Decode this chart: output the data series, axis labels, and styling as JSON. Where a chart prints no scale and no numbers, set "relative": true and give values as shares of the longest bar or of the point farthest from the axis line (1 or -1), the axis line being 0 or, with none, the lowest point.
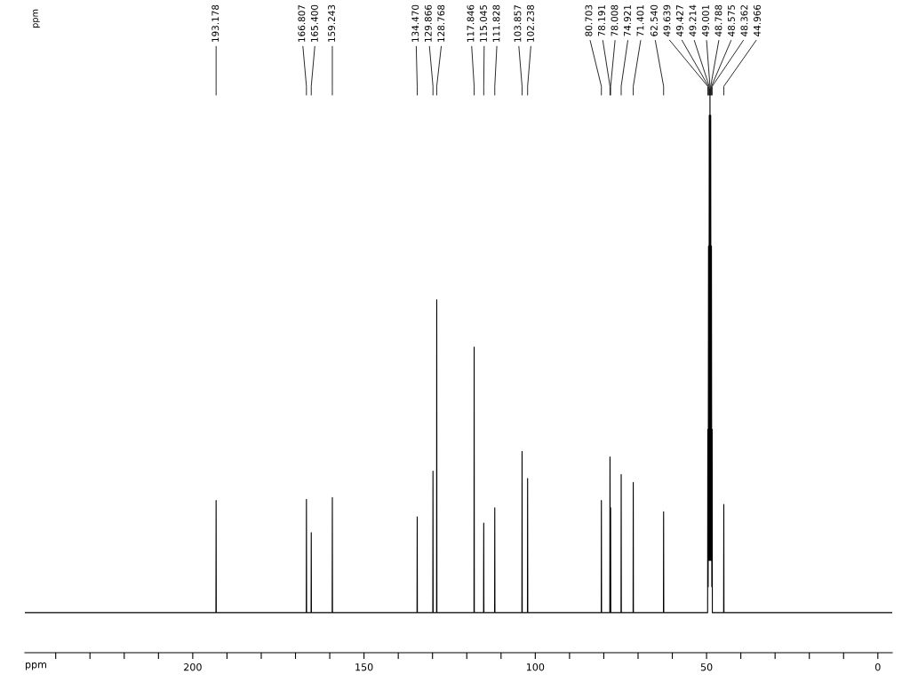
{
  "chart_data": {
    "type": "line",
    "relative": true,
    "xlabel": "ppm",
    "xlim": [
      249,
      -4.2
    ],
    "xticks": [
      {
        "value": 240,
        "label": null
      },
      {
        "value": 230,
        "label": null
      },
      {
        "value": 220,
        "label": null
      },
      {
        "value": 210,
        "label": null
      },
      200,
      {
        "value": 190,
        "label": null
      },
      {
        "value": 180,
        "label": null
      },
      {
        "value": 170,
        "label": null
      },
      {
        "value": 160,
        "label": null
      },
      150,
      {
        "value": 140,
        "label": null
      },
      {
        "value": 130,
        "label": null
      },
      {
        "value": 120,
        "label": null
      },
      {
        "value": 110,
        "label": null
      },
      100,
      {
        "value": 90,
        "label": null
      },
      {
        "value": 80,
        "label": null
      },
      {
        "value": 70,
        "label": null
      },
      {
        "value": 60,
        "label": null
      },
      50,
      {
        "value": 40,
        "label": null
      },
      {
        "value": 30,
        "label": null
      },
      {
        "value": 20,
        "label": null
      },
      {
        "value": 10,
        "label": null
      },
      0
    ],
    "tick_labels": "x",
    "grid": false,
    "legend": false,
    "marker": "none",
    "line_style": "solid",
    "series": [
      {
        "color": "#000000",
        "x": [
          249,
          193.228,
          193.178,
          193.128,
          166.857,
          166.807,
          166.757,
          165.45,
          165.4,
          165.35,
          159.293,
          159.243,
          159.193,
          134.52,
          134.47,
          134.42,
          129.916,
          129.866,
          129.816,
          128.818,
          128.768,
          128.718,
          117.896,
          117.846,
          117.796,
          115.095,
          115.045,
          114.995,
          111.878,
          111.828,
          111.778,
          103.907,
          103.857,
          103.807,
          102.288,
          102.238,
          102.188,
          80.753,
          80.703,
          80.653,
          78.241,
          78.191,
          78.1,
          78.008,
          77.958,
          74.971,
          74.921,
          74.871,
          71.451,
          71.401,
          71.351,
          62.59,
          62.54,
          62.49,
          49.689,
          49.639,
          49.533,
          49.427,
          49.32,
          49.214,
          49.107,
          49.001,
          48.894,
          48.788,
          48.681,
          48.575,
          48.468,
          48.362,
          48.312,
          45.016,
          44.966,
          44.916,
          -4.2
        ],
        "values": [
          0.071,
          0.071,
          0.27,
          0.071,
          0.071,
          0.272,
          0.071,
          0.071,
          0.213,
          0.071,
          0.071,
          0.275,
          0.071,
          0.071,
          0.241,
          0.071,
          0.071,
          0.322,
          0.071,
          0.071,
          0.626,
          0.071,
          0.071,
          0.542,
          0.071,
          0.071,
          0.23,
          0.071,
          0.071,
          0.257,
          0.071,
          0.071,
          0.357,
          0.071,
          0.071,
          0.309,
          0.071,
          0.071,
          0.27,
          0.071,
          0.071,
          0.347,
          0.071,
          0.257,
          0.071,
          0.071,
          0.316,
          0.071,
          0.071,
          0.302,
          0.071,
          0.071,
          0.25,
          0.071,
          0.071,
          0.396,
          0.117,
          0.721,
          0.164,
          0.953,
          0.164,
          1,
          0.164,
          0.953,
          0.164,
          0.721,
          0.117,
          0.396,
          0.071,
          0.071,
          0.263,
          0.071,
          0.071
        ]
      }
    ],
    "annotations": [
      "ppm",
      {
        "text": "193.178",
        "x": 193.178
      },
      {
        "text": "166.807",
        "x": 166.807
      },
      {
        "text": "165.400",
        "x": 165.4
      },
      {
        "text": "159.243",
        "x": 159.243
      },
      {
        "text": "134.470",
        "x": 134.47
      },
      {
        "text": "129.866",
        "x": 129.866
      },
      {
        "text": "128.768",
        "x": 128.768
      },
      {
        "text": "117.846",
        "x": 117.846
      },
      {
        "text": "115.045",
        "x": 115.045
      },
      {
        "text": "111.828",
        "x": 111.828
      },
      {
        "text": "103.857",
        "x": 103.857
      },
      {
        "text": "102.238",
        "x": 102.238
      },
      {
        "text": "80.703",
        "x": 80.703
      },
      {
        "text": "78.191",
        "x": 78.191
      },
      {
        "text": "78.008",
        "x": 78.008
      },
      {
        "text": "74.921",
        "x": 74.921
      },
      {
        "text": "71.401",
        "x": 71.401
      },
      {
        "text": "62.540",
        "x": 62.54
      },
      {
        "text": "49.639",
        "x": 49.639
      },
      {
        "text": "49.427",
        "x": 49.427
      },
      {
        "text": "49.214",
        "x": 49.214
      },
      {
        "text": "49.001",
        "x": 49.001
      },
      {
        "text": "48.788",
        "x": 48.788
      },
      {
        "text": "48.575",
        "x": 48.575
      },
      {
        "text": "48.362",
        "x": 48.362
      },
      {
        "text": "44.966",
        "x": 44.966
      }
    ]
  }
}
